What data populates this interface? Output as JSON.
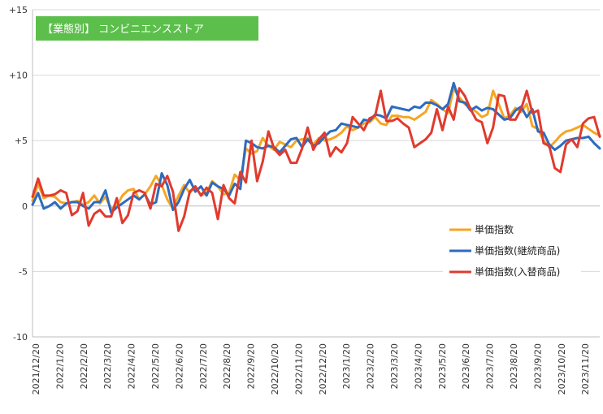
{
  "badge": {
    "label": "【業態別】 コンビニエンスストア",
    "color": "#5cbf4c"
  },
  "chart_data": {
    "type": "line",
    "title": "【業態別】 コンビニエンスストア",
    "xlabel": "",
    "ylabel": "",
    "ylim": [
      -10,
      15
    ],
    "yticks": [
      -10,
      -5,
      0,
      5,
      10,
      15
    ],
    "ytick_labels": [
      "-10",
      "-5",
      "0",
      "+5",
      "+10",
      "+15"
    ],
    "grid": "horizontal",
    "legend_position": "right",
    "x_tick_labels": [
      "2021/12/20",
      "2022/1/20",
      "2022/2/20",
      "2022/3/20",
      "2022/4/20",
      "2022/5/20",
      "2022/6/20",
      "2022/7/20",
      "2022/8/20",
      "2022/9/20",
      "2022/10/20",
      "2022/11/20",
      "2022/12/20",
      "2023/1/20",
      "2023/2/20",
      "2023/3/20",
      "2023/4/20",
      "2023/5/20",
      "2023/6/20",
      "2023/7/20",
      "2023/8/20",
      "2023/9/20",
      "2023/10/20",
      "2023/11/20"
    ],
    "series": [
      {
        "name": "単価指数",
        "color": "#f5a623",
        "values": [
          0.4,
          1.7,
          0.6,
          0.8,
          0.7,
          0.3,
          0.2,
          0.3,
          0.4,
          0.1,
          0.3,
          0.8,
          0.2,
          0.7,
          -0.2,
          0.0,
          0.8,
          1.2,
          1.3,
          0.5,
          0.9,
          1.5,
          2.3,
          1.6,
          0.5,
          -0.2,
          0.8,
          1.6,
          1.0,
          1.5,
          0.8,
          1.0,
          1.9,
          1.5,
          0.9,
          1.0,
          2.4,
          2.0,
          4.4,
          4.0,
          4.2,
          5.2,
          4.6,
          4.3,
          4.9,
          4.7,
          4.5,
          5.0,
          5.1,
          5.2,
          4.7,
          5.2,
          5.0,
          5.1,
          5.3,
          5.6,
          6.1,
          5.8,
          6.0,
          6.3,
          6.4,
          6.8,
          6.3,
          6.2,
          6.9,
          6.9,
          6.8,
          6.8,
          6.6,
          6.9,
          7.2,
          8.1,
          7.8,
          7.4,
          7.1,
          9.0,
          8.3,
          7.8,
          7.5,
          7.2,
          6.8,
          7.0,
          8.8,
          7.8,
          6.7,
          6.9,
          7.5,
          7.2,
          7.8,
          6.1,
          5.9,
          5.0,
          4.5,
          4.9,
          5.4,
          5.7,
          5.8,
          6.0,
          6.2,
          5.9,
          5.6,
          5.4
        ]
      },
      {
        "name": "単価指数(継続商品)",
        "color": "#2e6bbf",
        "values": [
          0.1,
          1.0,
          -0.2,
          0.0,
          0.3,
          -0.2,
          0.2,
          0.3,
          0.3,
          0.0,
          -0.2,
          0.3,
          0.3,
          1.2,
          -0.5,
          -0.1,
          0.2,
          0.5,
          0.8,
          0.5,
          0.9,
          0.1,
          0.3,
          2.5,
          1.6,
          -0.3,
          0.3,
          1.3,
          2.0,
          1.1,
          1.5,
          0.8,
          1.8,
          1.5,
          1.3,
          0.8,
          1.7,
          1.3,
          5.0,
          4.8,
          4.5,
          4.4,
          4.6,
          4.5,
          4.1,
          4.6,
          5.1,
          5.2,
          4.5,
          5.1,
          4.6,
          4.8,
          5.3,
          5.7,
          5.8,
          6.3,
          6.2,
          6.1,
          6.0,
          6.6,
          6.5,
          7.0,
          6.9,
          6.7,
          7.6,
          7.5,
          7.4,
          7.3,
          7.6,
          7.5,
          7.9,
          7.9,
          7.7,
          7.4,
          7.8,
          9.4,
          8.0,
          7.9,
          7.3,
          7.6,
          7.3,
          7.5,
          7.4,
          7.0,
          6.6,
          6.7,
          7.3,
          7.6,
          6.8,
          7.4,
          5.7,
          5.6,
          4.7,
          4.3,
          4.6,
          5.0,
          5.1,
          5.2,
          5.2,
          5.3,
          4.8,
          4.4
        ]
      },
      {
        "name": "単価指数(入替商品)",
        "color": "#e03b2e",
        "values": [
          0.7,
          2.1,
          0.8,
          0.8,
          0.9,
          1.2,
          1.0,
          -0.7,
          -0.4,
          1.0,
          -1.5,
          -0.6,
          -0.3,
          -0.8,
          -0.8,
          0.6,
          -1.3,
          -0.7,
          1.0,
          1.2,
          1.0,
          -0.2,
          1.7,
          1.5,
          2.3,
          1.1,
          -1.9,
          -0.8,
          1.1,
          1.5,
          0.8,
          1.4,
          1.0,
          -1.0,
          1.6,
          0.6,
          0.2,
          2.6,
          1.8,
          5.0,
          1.9,
          3.4,
          5.7,
          4.4,
          3.9,
          4.3,
          3.3,
          3.3,
          4.4,
          6.0,
          4.3,
          5.1,
          5.6,
          3.8,
          4.5,
          4.1,
          4.8,
          6.8,
          6.3,
          5.8,
          6.7,
          6.9,
          8.8,
          6.5,
          6.5,
          6.7,
          6.3,
          6.0,
          4.5,
          4.8,
          5.1,
          5.6,
          7.4,
          5.8,
          7.6,
          6.6,
          9.0,
          8.4,
          7.4,
          6.6,
          6.4,
          4.8,
          6.0,
          8.5,
          8.4,
          6.6,
          6.6,
          7.4,
          8.8,
          7.1,
          7.3,
          4.8,
          4.6,
          2.9,
          2.6,
          4.7,
          5.1,
          4.5,
          6.3,
          6.7,
          6.8,
          5.3
        ]
      }
    ]
  }
}
